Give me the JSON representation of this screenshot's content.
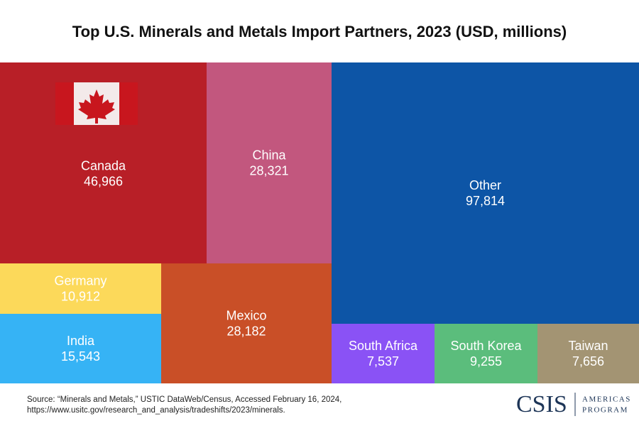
{
  "chart_data": {
    "type": "treemap",
    "title": "Top U.S. Minerals and Metals Import Partners, 2023 (USD, millions)",
    "categories": [
      "Canada",
      "China",
      "Other",
      "Germany",
      "India",
      "Mexico",
      "South Africa",
      "South Korea",
      "Taiwan"
    ],
    "values": [
      46966,
      28321,
      97814,
      10912,
      15543,
      28182,
      7537,
      9255,
      7656
    ],
    "value_labels": [
      "46,966",
      "28,321",
      "97,814",
      "10,912",
      "15,543",
      "28,182",
      "7,537",
      "9,255",
      "7,656"
    ],
    "colors": [
      "#b81f27",
      "#c2577e",
      "#0d55a6",
      "#fcd95a",
      "#36b3f5",
      "#c94f27",
      "#8a52f5",
      "#5bbd7c",
      "#a39473"
    ]
  },
  "source_lines": [
    "Source: “Minerals and Metals,” USTIC DataWeb/Census, Accessed February 16, 2024,",
    "https://www.usitc.gov/research_and_analysis/tradeshifts/2023/minerals."
  ],
  "logo": {
    "name": "CSIS",
    "line1": "AMERICAS",
    "line2": "PROGRAM"
  }
}
